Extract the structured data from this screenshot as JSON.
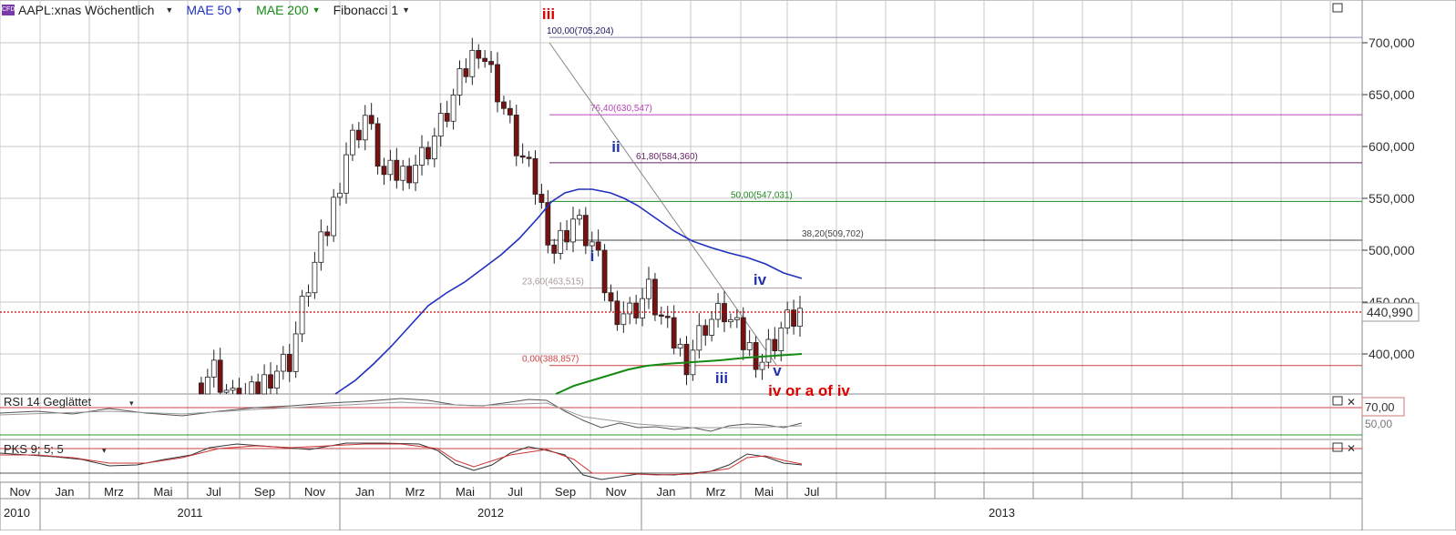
{
  "header": {
    "symbol": "AAPL:xnas Wöchentlich",
    "cfd_badge": "CFD",
    "indicators": [
      {
        "label": "MAE 50",
        "color": "#1f2fbf"
      },
      {
        "label": "MAE 200",
        "color": "#138a13"
      },
      {
        "label": "Fibonacci 1",
        "color": "#222222"
      }
    ]
  },
  "colors": {
    "up": "#ffffff",
    "down": "#7a1010",
    "mae50": "#1f2fbf",
    "mae200": "#138a13",
    "last_price": "#cc0000",
    "grid": "#c8c8c8"
  },
  "price_axis": {
    "ticks": [
      "700,000",
      "650,000",
      "600,000",
      "550,000",
      "500,000",
      "450,000",
      "400,000"
    ],
    "last_price_label": "440,990"
  },
  "time_axis": {
    "months": [
      "Nov",
      "Jan",
      "Mrz",
      "Mai",
      "Jul",
      "Sep",
      "Nov",
      "Jan",
      "Mrz",
      "Mai",
      "Jul",
      "Sep",
      "Nov",
      "Jan",
      "Mrz",
      "Mai",
      "Jul"
    ],
    "years": [
      "2010",
      "2011",
      "2012",
      "2013"
    ]
  },
  "fib_levels": [
    {
      "label": "100,00(705,204)",
      "value": 705.204,
      "color": "#8a8aaa"
    },
    {
      "label": "76,40(630,547)",
      "value": 630.547,
      "color": "#bb44bb"
    },
    {
      "label": "61,80(584,360)",
      "value": 584.36,
      "color": "#662266"
    },
    {
      "label": "50,00(547,031)",
      "value": 547.031,
      "color": "#228822"
    },
    {
      "label": "38,20(509,702)",
      "value": 509.702,
      "color": "#444444"
    },
    {
      "label": "23,60(463,515)",
      "value": 463.515,
      "color": "#aa9999"
    },
    {
      "label": "0,00(388,857)",
      "value": 388.857,
      "color": "#cc4444"
    }
  ],
  "annotations": [
    {
      "text": "iii",
      "color": "#dd0000"
    },
    {
      "text": "i",
      "color": "#2233aa"
    },
    {
      "text": "ii",
      "color": "#2233aa"
    },
    {
      "text": "iii",
      "color": "#2233aa"
    },
    {
      "text": "iv",
      "color": "#2233aa"
    },
    {
      "text": "v",
      "color": "#2233aa"
    },
    {
      "text": "iv or a of iv",
      "color": "#dd0000"
    }
  ],
  "panels": {
    "rsi": {
      "title": "RSI 14 Geglättet",
      "tick_label": "70,00",
      "hidden_label": "50,00"
    },
    "pks": {
      "title": "PKS 9; 5; 5"
    }
  },
  "chart_data": {
    "type": "line",
    "title": "AAPL:xnas Wöchentlich",
    "series": [
      {
        "name": "MAE 50",
        "values": [
          360,
          372,
          395,
          425,
          458,
          482,
          498,
          515,
          538,
          558,
          560,
          558,
          550,
          540,
          528,
          518,
          500,
          488,
          478,
          471
        ]
      },
      {
        "name": "MAE 200",
        "values": [
          368,
          375,
          382,
          386,
          388,
          390,
          394,
          398,
          400
        ]
      }
    ],
    "weekly_close_sample": [
      372,
      385,
      355,
      358,
      382,
      395,
      468,
      520,
      595,
      630,
      570,
      575,
      590,
      620,
      660,
      700,
      655,
      600,
      560,
      500,
      530,
      505,
      445,
      440,
      460,
      420,
      395,
      430,
      440,
      410,
      395,
      425,
      441
    ],
    "ylim": [
      360,
      730
    ],
    "last_price": 440.99
  }
}
